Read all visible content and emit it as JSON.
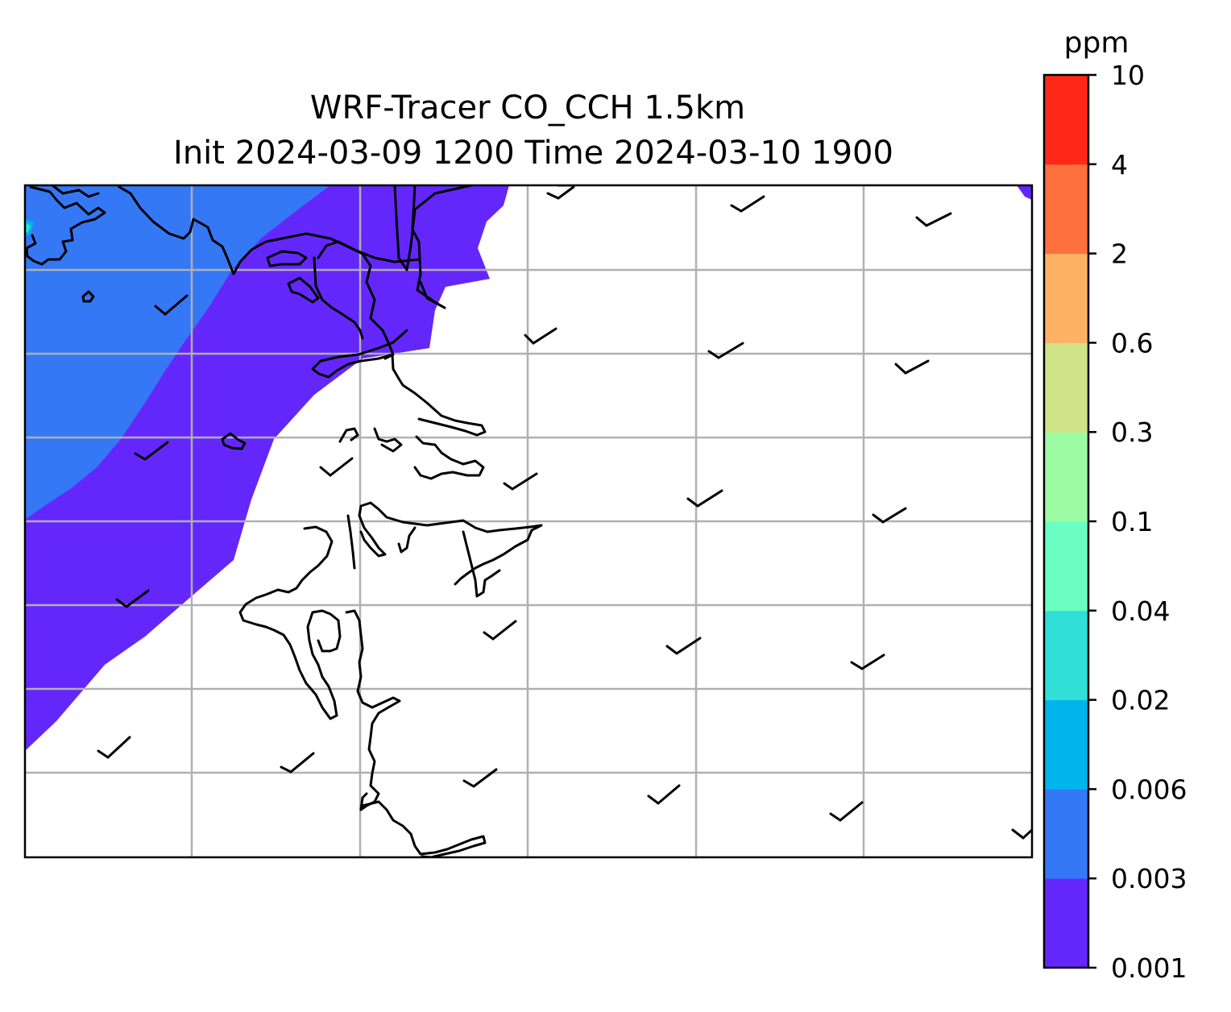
{
  "figure": {
    "title_line1": "WRF-Tracer CO_CCH 1.5km",
    "title_line2": "Init 2024-03-09 1200 Time 2024-03-10 1900"
  },
  "map": {
    "grid": true,
    "coastlines": true,
    "wind_barbs": true,
    "shaded_levels_present": [
      "0.001",
      "0.003",
      "0.006",
      "0.02"
    ]
  },
  "colorbar": {
    "unit": "ppm",
    "tick_labels": [
      "0.001",
      "0.003",
      "0.006",
      "0.02",
      "0.04",
      "0.1",
      "0.3",
      "0.6",
      "2",
      "4",
      "10"
    ],
    "colors": [
      "#6427fb",
      "#3478f6",
      "#00b4ec",
      "#30dfd7",
      "#6bfec2",
      "#9cfba3",
      "#d1e388",
      "#feb264",
      "#fe703e",
      "#ff2818"
    ]
  }
}
